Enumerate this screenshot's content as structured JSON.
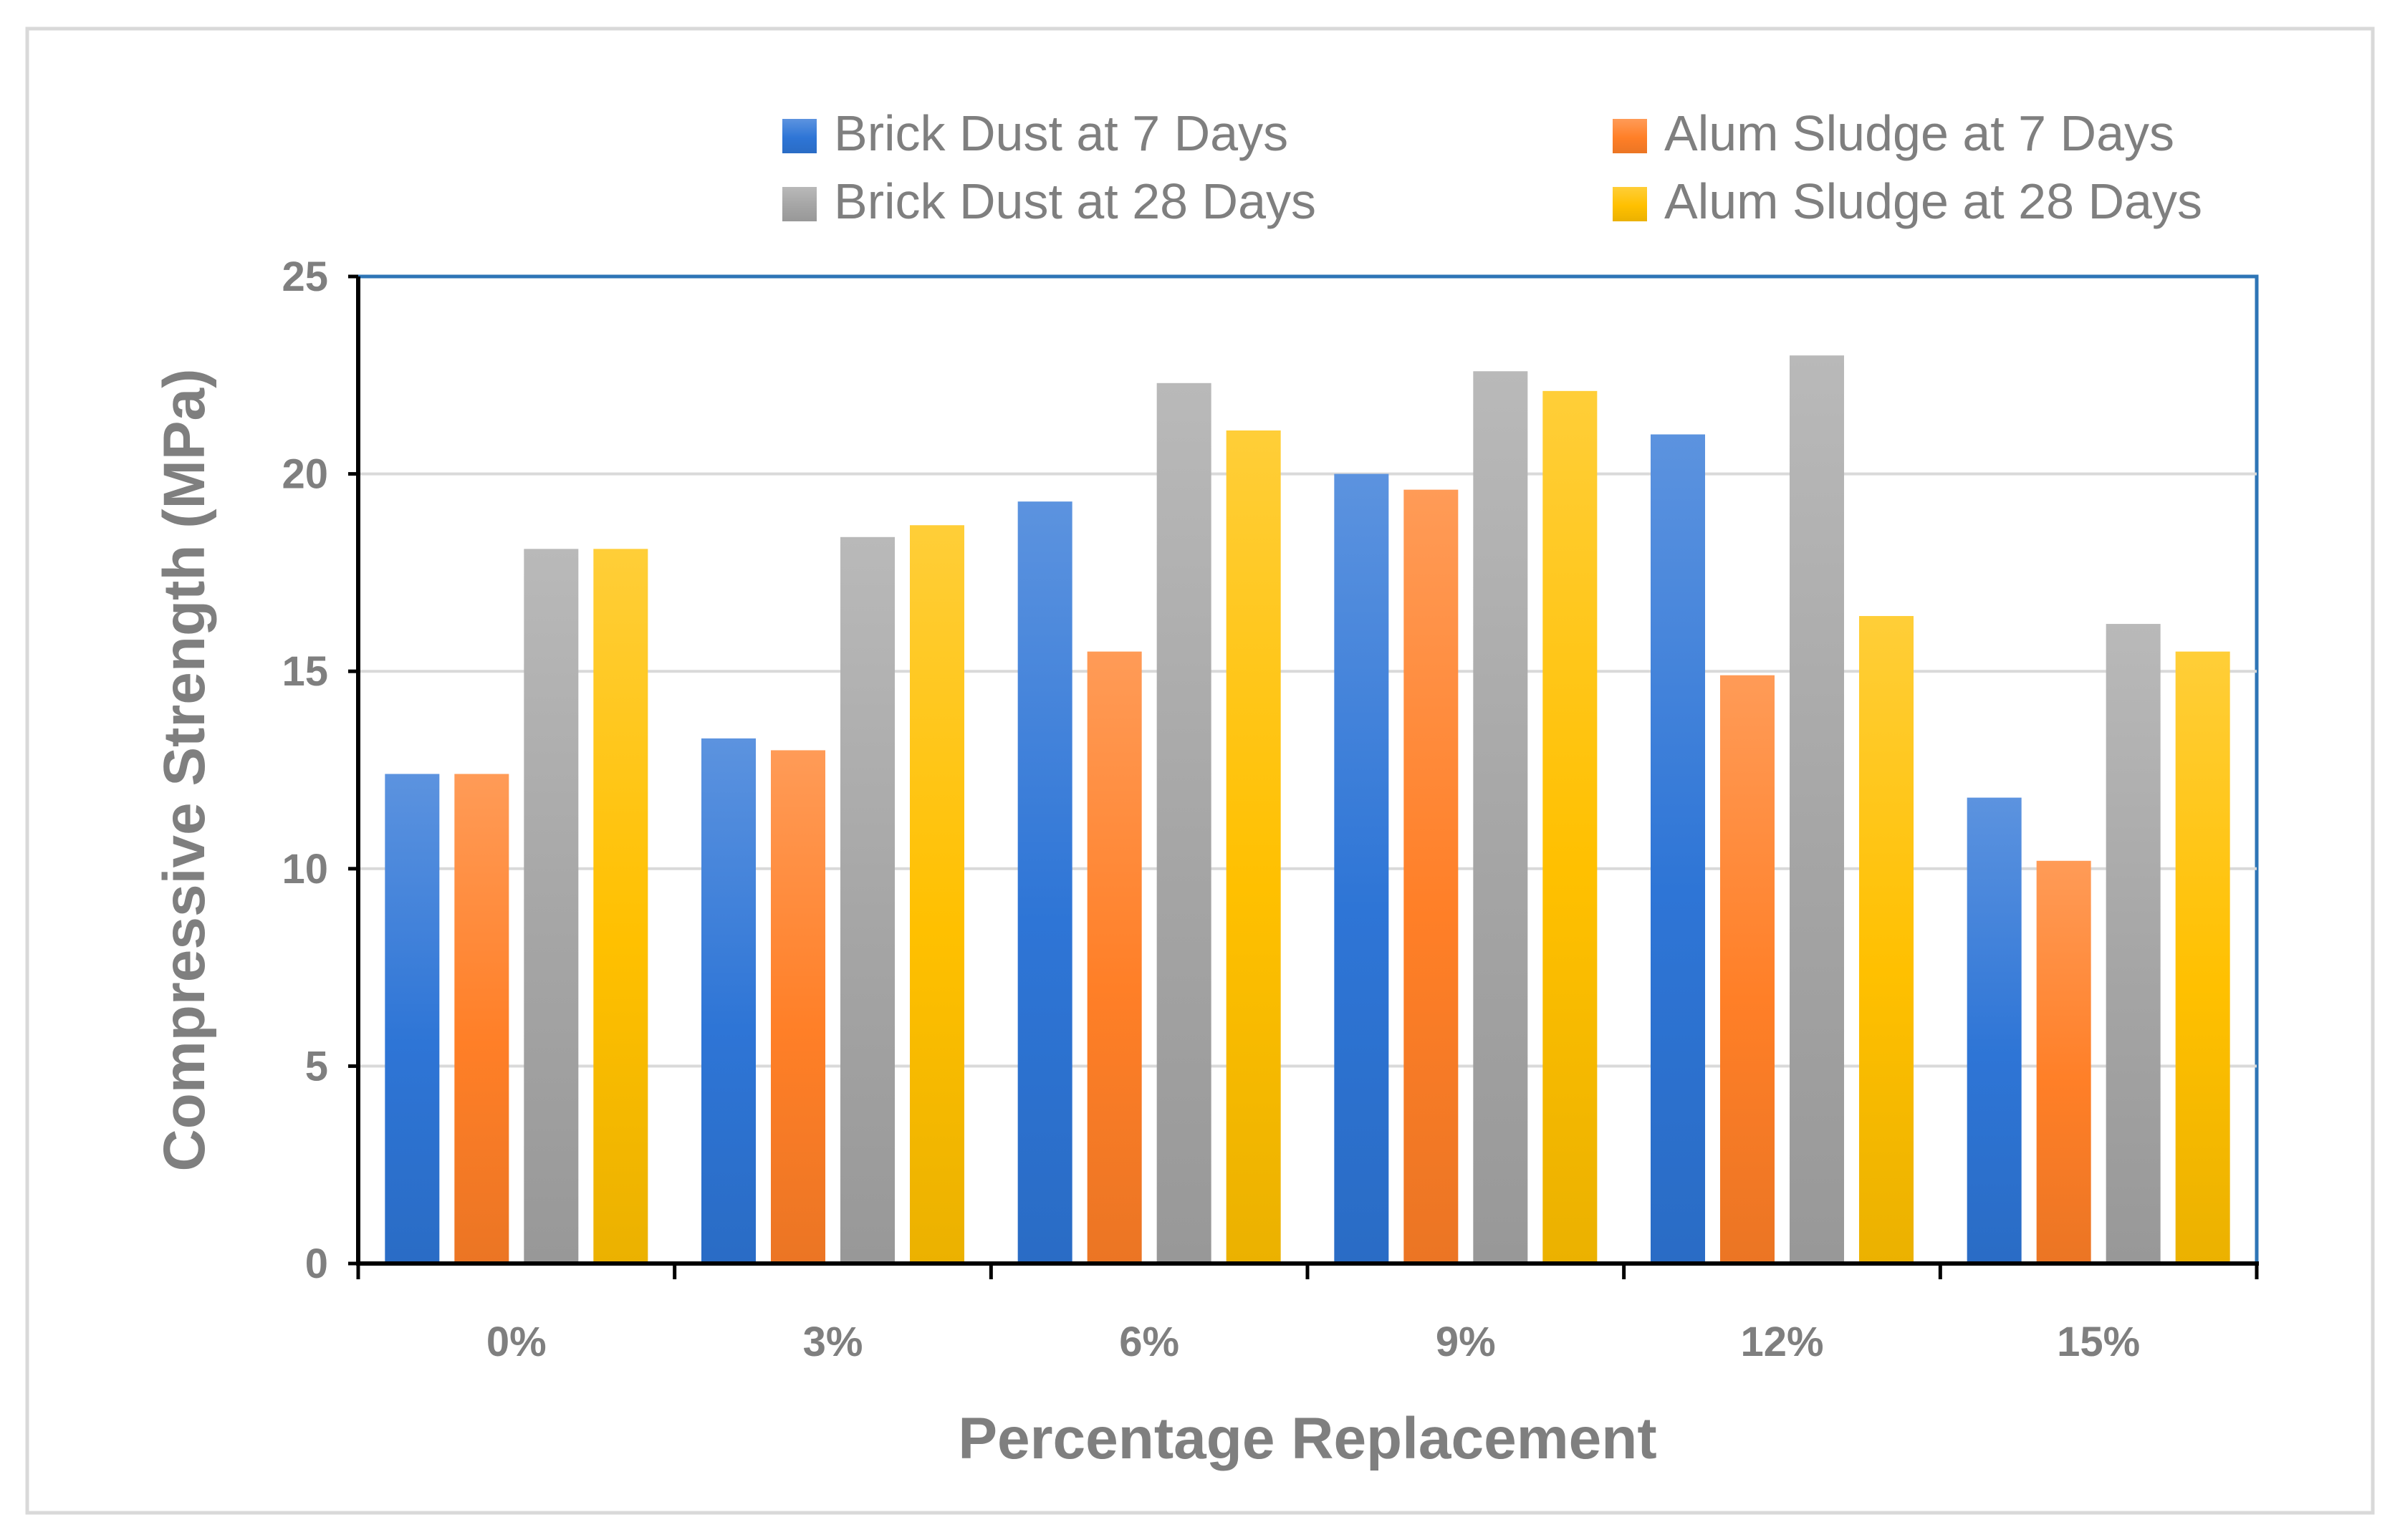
{
  "chart_data": {
    "type": "bar",
    "title": "",
    "xlabel": "Percentage Replacement",
    "ylabel": "Compressive Strength (MPa)",
    "ylim": [
      0,
      25
    ],
    "yticks": [
      0,
      5,
      10,
      15,
      20,
      25
    ],
    "grid": true,
    "legend_position": "top",
    "categories": [
      "0%",
      "3%",
      "6%",
      "9%",
      "12%",
      "15%"
    ],
    "series": [
      {
        "name": "Brick Dust at 7 Days",
        "color": "#2E75D6",
        "values": [
          12.4,
          13.3,
          19.3,
          20.0,
          21.0,
          11.8
        ]
      },
      {
        "name": "Alum Sludge at 7 Days",
        "color": "#FF7F27",
        "values": [
          12.4,
          13.0,
          15.5,
          19.6,
          14.9,
          10.2
        ]
      },
      {
        "name": "Brick Dust at 28 Days",
        "color": "#A5A5A5",
        "values": [
          18.1,
          18.4,
          22.3,
          22.6,
          23.0,
          16.2
        ]
      },
      {
        "name": "Alum Sludge at 28 Days",
        "color": "#FFC000",
        "values": [
          18.1,
          18.7,
          21.1,
          22.1,
          16.4,
          15.5
        ]
      }
    ]
  }
}
